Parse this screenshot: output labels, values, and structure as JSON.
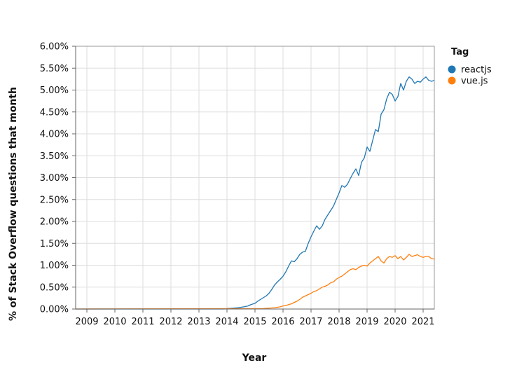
{
  "chart_data": {
    "type": "line",
    "xlabel": "Year",
    "ylabel": "% of Stack Overflow questions that month",
    "xlim": [
      2008.6,
      2021.4
    ],
    "ylim": [
      0,
      6
    ],
    "x_ticks": [
      2009,
      2010,
      2011,
      2012,
      2013,
      2014,
      2015,
      2016,
      2017,
      2018,
      2019,
      2020,
      2021
    ],
    "x_tick_labels": [
      "2009",
      "2010",
      "2011",
      "2012",
      "2013",
      "2014",
      "2015",
      "2016",
      "2017",
      "2018",
      "2019",
      "2020",
      "2021"
    ],
    "y_ticks": [
      0,
      0.5,
      1,
      1.5,
      2,
      2.5,
      3,
      3.5,
      4,
      4.5,
      5,
      5.5,
      6
    ],
    "y_tick_labels": [
      "0.00%",
      "0.50%",
      "1.00%",
      "1.50%",
      "2.00%",
      "2.50%",
      "3.00%",
      "3.50%",
      "4.00%",
      "4.50%",
      "5.00%",
      "5.50%",
      "6.00%"
    ],
    "grid": true,
    "legend": {
      "title": "Tag",
      "position": "top-right"
    },
    "series": [
      {
        "name": "reactjs",
        "color": "#1f77b4",
        "x": [
          2008.6,
          2013.9,
          2014.0,
          2014.2,
          2014.4,
          2014.6,
          2014.75,
          2014.85,
          2015.0,
          2015.1,
          2015.2,
          2015.3,
          2015.4,
          2015.5,
          2015.6,
          2015.7,
          2015.8,
          2015.9,
          2016.0,
          2016.1,
          2016.2,
          2016.3,
          2016.4,
          2016.5,
          2016.6,
          2016.7,
          2016.8,
          2016.9,
          2017.0,
          2017.1,
          2017.2,
          2017.3,
          2017.4,
          2017.5,
          2017.6,
          2017.7,
          2017.8,
          2017.9,
          2018.0,
          2018.1,
          2018.2,
          2018.3,
          2018.4,
          2018.5,
          2018.6,
          2018.7,
          2018.8,
          2018.9,
          2019.0,
          2019.1,
          2019.2,
          2019.3,
          2019.4,
          2019.5,
          2019.6,
          2019.7,
          2019.8,
          2019.9,
          2020.0,
          2020.1,
          2020.2,
          2020.3,
          2020.4,
          2020.5,
          2020.6,
          2020.7,
          2020.8,
          2020.9,
          2021.0,
          2021.1,
          2021.2,
          2021.3,
          2021.4
        ],
        "y": [
          0,
          0,
          0.01,
          0.02,
          0.03,
          0.05,
          0.07,
          0.1,
          0.13,
          0.18,
          0.22,
          0.26,
          0.3,
          0.36,
          0.45,
          0.55,
          0.62,
          0.68,
          0.75,
          0.85,
          0.98,
          1.1,
          1.08,
          1.15,
          1.25,
          1.3,
          1.32,
          1.5,
          1.65,
          1.78,
          1.9,
          1.82,
          1.9,
          2.05,
          2.15,
          2.25,
          2.35,
          2.5,
          2.65,
          2.82,
          2.78,
          2.85,
          2.98,
          3.1,
          3.2,
          3.05,
          3.35,
          3.45,
          3.7,
          3.6,
          3.85,
          4.1,
          4.05,
          4.45,
          4.55,
          4.8,
          4.95,
          4.9,
          4.75,
          4.85,
          5.15,
          5.0,
          5.2,
          5.3,
          5.25,
          5.15,
          5.2,
          5.18,
          5.25,
          5.3,
          5.22,
          5.2,
          5.22
        ]
      },
      {
        "name": "vue.js",
        "color": "#ff7f0e",
        "x": [
          2008.6,
          2015.3,
          2015.5,
          2015.7,
          2015.9,
          2016.0,
          2016.1,
          2016.2,
          2016.3,
          2016.4,
          2016.5,
          2016.6,
          2016.7,
          2016.8,
          2016.9,
          2017.0,
          2017.1,
          2017.2,
          2017.3,
          2017.4,
          2017.5,
          2017.6,
          2017.7,
          2017.8,
          2017.9,
          2018.0,
          2018.1,
          2018.2,
          2018.3,
          2018.4,
          2018.5,
          2018.6,
          2018.7,
          2018.8,
          2018.9,
          2019.0,
          2019.1,
          2019.2,
          2019.3,
          2019.4,
          2019.5,
          2019.6,
          2019.7,
          2019.8,
          2019.9,
          2020.0,
          2020.1,
          2020.2,
          2020.3,
          2020.4,
          2020.5,
          2020.6,
          2020.7,
          2020.8,
          2020.9,
          2021.0,
          2021.1,
          2021.2,
          2021.3,
          2021.4
        ],
        "y": [
          0,
          0.01,
          0.02,
          0.03,
          0.05,
          0.07,
          0.08,
          0.1,
          0.12,
          0.15,
          0.18,
          0.22,
          0.27,
          0.3,
          0.33,
          0.36,
          0.4,
          0.42,
          0.46,
          0.5,
          0.52,
          0.55,
          0.6,
          0.62,
          0.68,
          0.72,
          0.75,
          0.8,
          0.85,
          0.9,
          0.92,
          0.9,
          0.95,
          0.98,
          1.0,
          0.98,
          1.05,
          1.1,
          1.15,
          1.2,
          1.1,
          1.05,
          1.15,
          1.2,
          1.18,
          1.22,
          1.15,
          1.2,
          1.12,
          1.18,
          1.25,
          1.2,
          1.22,
          1.24,
          1.2,
          1.18,
          1.2,
          1.2,
          1.15,
          1.14
        ]
      }
    ]
  }
}
